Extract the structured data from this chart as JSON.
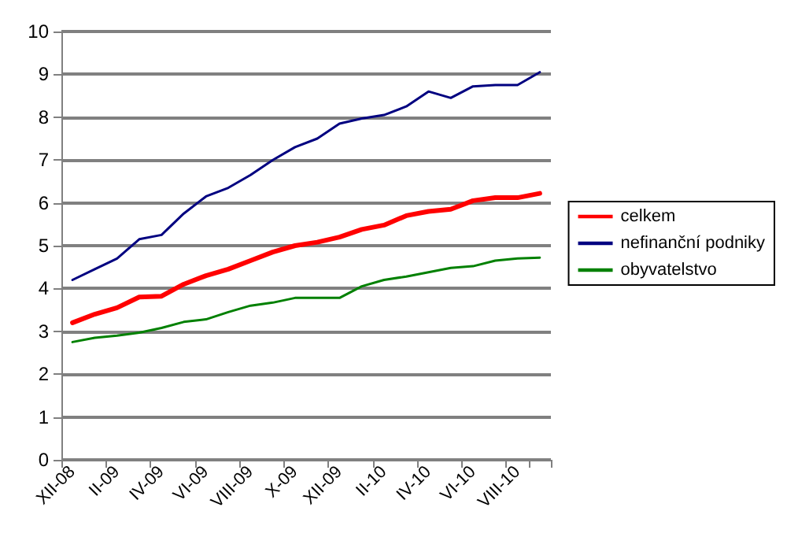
{
  "chart_data": {
    "type": "line",
    "categories": [
      "XII-08",
      null,
      "II-09",
      null,
      "IV-09",
      null,
      "VI-09",
      null,
      "VIII-09",
      null,
      "X-09",
      null,
      "XII-09",
      null,
      "II-10",
      null,
      "IV-10",
      null,
      "VI-10",
      null,
      "VIII-10",
      null
    ],
    "series": [
      {
        "name": "celkem",
        "color": "#ff0000",
        "values": [
          3.2,
          3.4,
          3.55,
          3.8,
          3.82,
          4.1,
          4.3,
          4.45,
          4.65,
          4.85,
          5.0,
          5.08,
          5.2,
          5.38,
          5.48,
          5.7,
          5.8,
          5.85,
          6.05,
          6.12,
          6.12,
          6.22
        ]
      },
      {
        "name": "nefinanční podniky",
        "color": "#000080",
        "values": [
          4.2,
          4.45,
          4.7,
          5.15,
          5.25,
          5.75,
          6.15,
          6.35,
          6.65,
          7.0,
          7.3,
          7.5,
          7.85,
          7.97,
          8.05,
          8.25,
          8.6,
          8.45,
          8.72,
          8.75,
          8.75,
          9.05
        ]
      },
      {
        "name": "obyvatelstvo",
        "color": "#008000",
        "values": [
          2.75,
          2.85,
          2.9,
          2.97,
          3.08,
          3.22,
          3.28,
          3.45,
          3.6,
          3.67,
          3.78,
          3.78,
          3.78,
          4.05,
          4.2,
          4.28,
          4.38,
          4.48,
          4.52,
          4.65,
          4.7,
          4.72
        ]
      }
    ],
    "ylim": [
      0,
      10
    ],
    "yticks": [
      0,
      1,
      2,
      3,
      4,
      5,
      6,
      7,
      8,
      9,
      10
    ],
    "grid": "y",
    "legend": "right",
    "marker": "none",
    "line_style": "solid"
  }
}
